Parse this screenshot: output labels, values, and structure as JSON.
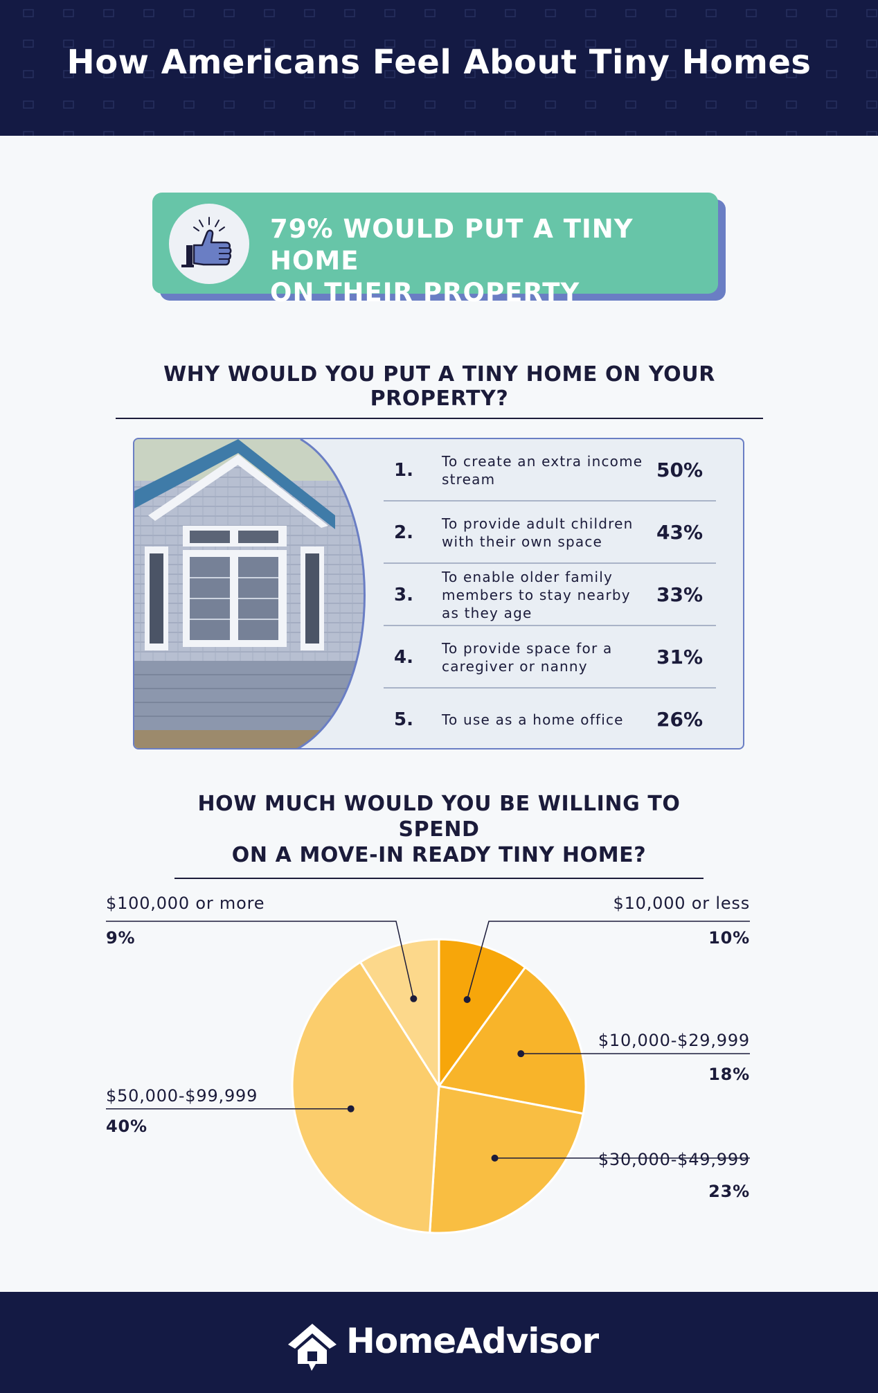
{
  "header": {
    "title": "How Americans Feel About Tiny Homes"
  },
  "callout": {
    "line1": "79% WOULD PUT A TINY HOME",
    "line2": "ON THEIR PROPERTY",
    "icon": "thumbs-up-icon"
  },
  "reasons": {
    "question": "WHY WOULD YOU PUT A TINY HOME ON YOUR PROPERTY?",
    "items": [
      {
        "rank": "1.",
        "text": "To create an extra income stream",
        "pct": "50%"
      },
      {
        "rank": "2.",
        "text": "To provide adult children with their own space",
        "pct": "43%"
      },
      {
        "rank": "3.",
        "text": "To enable older family members to stay nearby as they age",
        "pct": "33%"
      },
      {
        "rank": "4.",
        "text": "To provide space for a caregiver or nanny",
        "pct": "31%"
      },
      {
        "rank": "5.",
        "text": "To use as a home office",
        "pct": "26%"
      }
    ]
  },
  "spend": {
    "question_line1": "HOW MUCH WOULD YOU BE WILLING TO SPEND",
    "question_line2": "ON A MOVE-IN READY TINY HOME?"
  },
  "chart_data": {
    "type": "pie",
    "title": "HOW MUCH WOULD YOU BE WILLING TO SPEND ON A MOVE-IN READY TINY HOME?",
    "categories": [
      "$10,000 or less",
      "$10,000-$29,999",
      "$30,000-$49,999",
      "$50,000-$99,999",
      "$100,000 or more"
    ],
    "values": [
      10,
      18,
      23,
      40,
      9
    ],
    "labels": [
      "10%",
      "18%",
      "23%",
      "40%",
      "9%"
    ],
    "colors": [
      "#f7a60a",
      "#f8b42a",
      "#f9be42",
      "#fbcd6c",
      "#fcd88b"
    ]
  },
  "footer": {
    "brand": "HomeAdvisor",
    "logo_icon": "house-logo-icon"
  }
}
